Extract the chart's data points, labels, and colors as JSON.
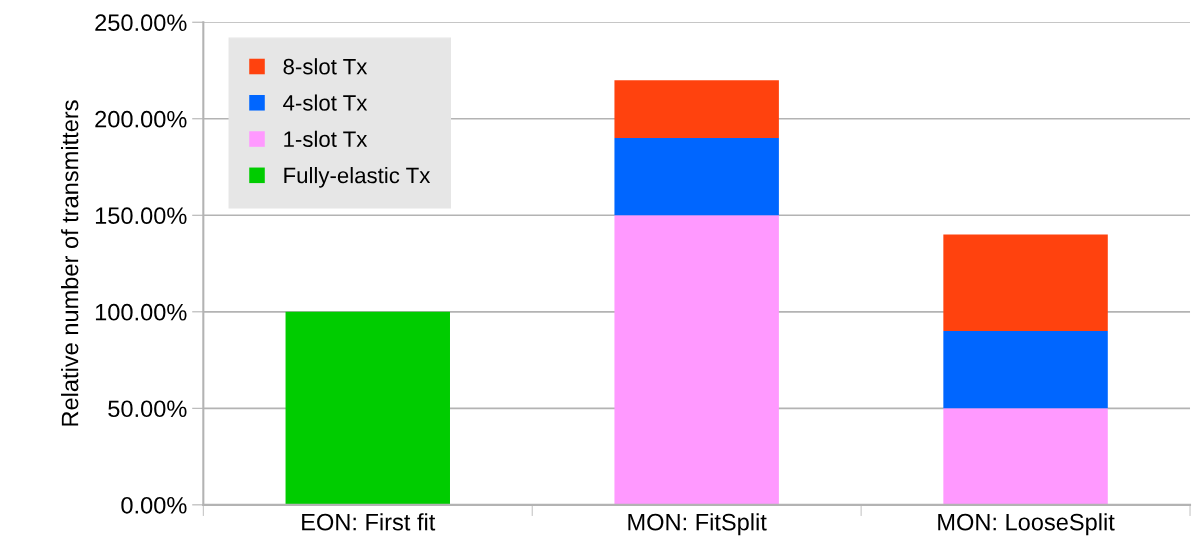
{
  "chart_data": {
    "type": "bar",
    "stacked": true,
    "ylabel": "Relative number of transmitters",
    "categories": [
      "EON: First fit",
      "MON: FitSplit",
      "MON: LooseSplit"
    ],
    "series": [
      {
        "name": "Fully-elastic Tx",
        "color": "#00cc00",
        "values": [
          100,
          0,
          0
        ]
      },
      {
        "name": "1-slot Tx",
        "color": "#ff99ff",
        "values": [
          0,
          150,
          50
        ]
      },
      {
        "name": "4-slot Tx",
        "color": "#0066ff",
        "values": [
          0,
          40,
          40
        ]
      },
      {
        "name": "8-slot Tx",
        "color": "#ff420e",
        "values": [
          0,
          30,
          50
        ]
      }
    ],
    "ylim": [
      0,
      250
    ],
    "yticks": [
      {
        "value": 0,
        "label": "0.00%"
      },
      {
        "value": 50,
        "label": "50.00%"
      },
      {
        "value": 100,
        "label": "100.00%"
      },
      {
        "value": 150,
        "label": "150.00%"
      },
      {
        "value": 200,
        "label": "200.00%"
      },
      {
        "value": 250,
        "label": "250.00%"
      }
    ],
    "grid": "y",
    "legend": "top left"
  }
}
